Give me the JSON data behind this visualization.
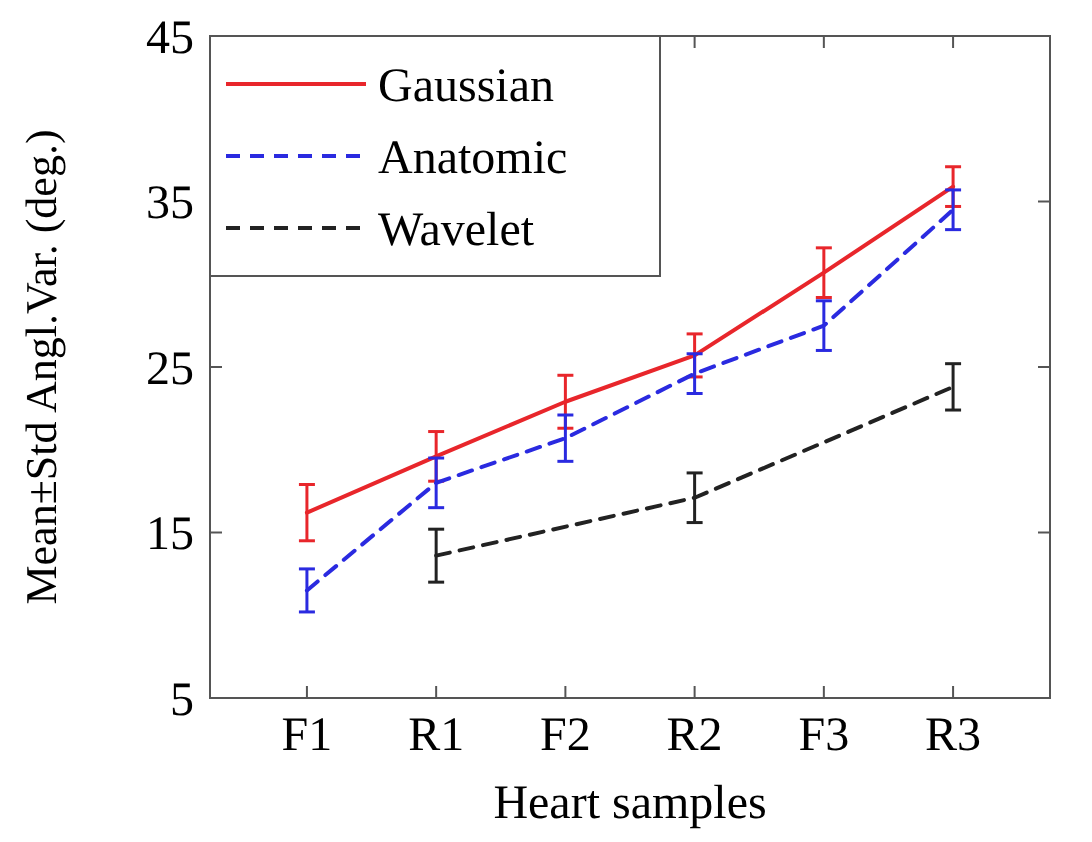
{
  "chart_data": {
    "type": "line",
    "xlabel": "Heart samples",
    "ylabel": "Mean±Std Angl.Var. (deg.)",
    "categories": [
      "F1",
      "R1",
      "F2",
      "R2",
      "F3",
      "R3"
    ],
    "ylim": [
      5,
      45
    ],
    "yticks": [
      5,
      15,
      25,
      35,
      45
    ],
    "grid": false,
    "legend": "top left",
    "series": [
      {
        "name": "Gaussian",
        "color": "#e8262b",
        "line_style": "solid",
        "values": [
          16.2,
          19.6,
          22.9,
          25.7,
          30.7,
          35.9
        ],
        "errors": [
          1.7,
          1.5,
          1.6,
          1.3,
          1.5,
          1.2
        ]
      },
      {
        "name": "Anatomic",
        "color": "#2a2ae0",
        "line_style": "dashed",
        "values": [
          11.5,
          18.0,
          20.7,
          24.6,
          27.5,
          34.5
        ],
        "errors": [
          1.3,
          1.5,
          1.4,
          1.2,
          1.5,
          1.2
        ]
      },
      {
        "name": "Wavelet",
        "color": "#222222",
        "line_style": "dashed",
        "values": [
          null,
          13.6,
          null,
          17.1,
          null,
          23.8
        ],
        "errors": [
          null,
          1.6,
          null,
          1.5,
          null,
          1.4
        ]
      }
    ]
  }
}
